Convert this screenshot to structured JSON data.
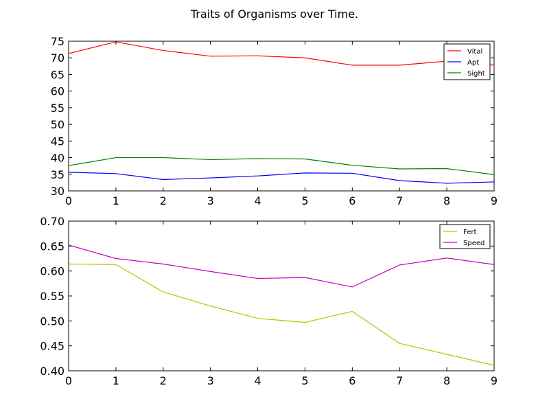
{
  "title": "Traits of Organisms over Time.",
  "chart_data": [
    {
      "type": "line",
      "x": [
        0,
        1,
        2,
        3,
        4,
        5,
        6,
        7,
        8,
        9
      ],
      "xlim": [
        0,
        9
      ],
      "ylim": [
        30,
        75
      ],
      "xticks": [
        "0",
        "1",
        "2",
        "3",
        "4",
        "5",
        "6",
        "7",
        "8",
        "9"
      ],
      "yticks": [
        "30",
        "35",
        "40",
        "45",
        "50",
        "55",
        "60",
        "65",
        "70",
        "75"
      ],
      "legend_position": "top-right",
      "series": [
        {
          "name": "Vital",
          "color": "#ff0000",
          "values": [
            71.3,
            74.8,
            72.2,
            70.5,
            70.6,
            70.0,
            67.8,
            67.8,
            69.0,
            67.8
          ]
        },
        {
          "name": "Apt",
          "color": "#0000ff",
          "values": [
            35.6,
            35.2,
            33.4,
            33.9,
            34.5,
            35.4,
            35.3,
            33.1,
            32.3,
            32.7
          ]
        },
        {
          "name": "Sight",
          "color": "#008000",
          "values": [
            37.6,
            40.0,
            40.0,
            39.4,
            39.7,
            39.6,
            37.7,
            36.6,
            36.7,
            34.9
          ]
        }
      ]
    },
    {
      "type": "line",
      "x": [
        0,
        1,
        2,
        3,
        4,
        5,
        6,
        7,
        8,
        9
      ],
      "xlim": [
        0,
        9
      ],
      "ylim": [
        0.4,
        0.7
      ],
      "xticks": [
        "0",
        "1",
        "2",
        "3",
        "4",
        "5",
        "6",
        "7",
        "8",
        "9"
      ],
      "yticks": [
        "0.40",
        "0.45",
        "0.50",
        "0.55",
        "0.60",
        "0.65",
        "0.70"
      ],
      "legend_position": "top-right",
      "series": [
        {
          "name": "Fert",
          "color": "#bfbf00",
          "values": [
            0.614,
            0.613,
            0.558,
            0.53,
            0.505,
            0.497,
            0.519,
            0.455,
            0.433,
            0.411
          ]
        },
        {
          "name": "Speed",
          "color": "#bf00bf",
          "values": [
            0.652,
            0.625,
            0.614,
            0.599,
            0.585,
            0.587,
            0.568,
            0.612,
            0.626,
            0.613
          ]
        }
      ]
    }
  ]
}
